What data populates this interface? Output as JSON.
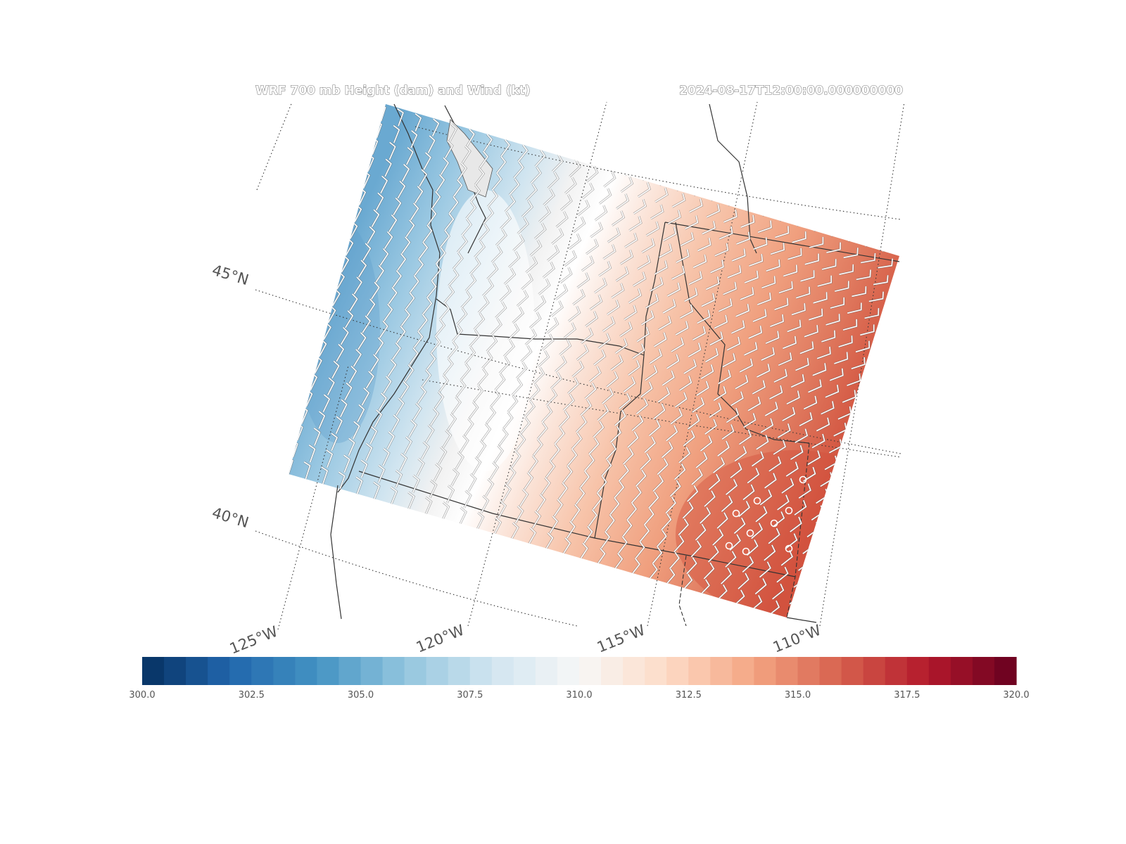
{
  "figure": {
    "title": "WRF 700 mb Height (dam) and Wind (kt)",
    "valid_time": "2024-08-17T12:00:00.000000000"
  },
  "map": {
    "latitude_labels": [
      "45°N",
      "40°N"
    ],
    "longitude_labels": [
      "125°W",
      "120°W",
      "115°W",
      "110°W"
    ],
    "field": "700 mb Height (dam)",
    "color_scale": "RdBu_r",
    "height_trend": "increases from west-northwest (~304 dam) to southeast (~317 dam)"
  },
  "colorbar": {
    "vmin": 300.0,
    "vmax": 320.0,
    "levels": 40,
    "tick_labels": [
      "300.0",
      "302.5",
      "305.0",
      "307.5",
      "310.0",
      "312.5",
      "315.0",
      "317.5",
      "320.0"
    ],
    "colors_low_to_high": [
      "#053061",
      "#2166ac",
      "#4393c3",
      "#92c5de",
      "#d1e5f0",
      "#f7f7f7",
      "#fddbc7",
      "#f4a582",
      "#d6604d",
      "#b2182b",
      "#67001f"
    ]
  }
}
